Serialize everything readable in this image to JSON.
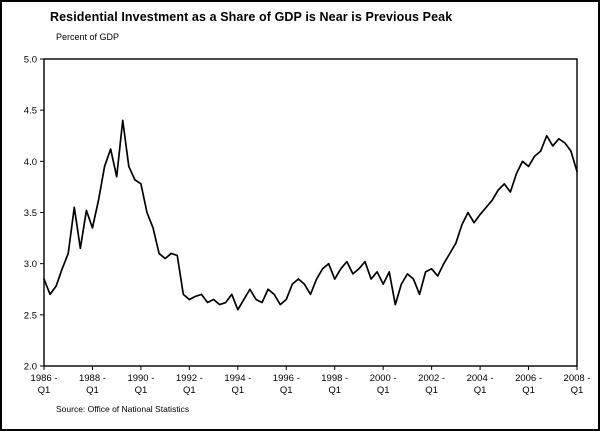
{
  "title": "Residential Investment as a Share of GDP is Near is Previous Peak",
  "subtitle": "Percent of GDP",
  "source": "Source: Office of National Statistics",
  "chart_data": {
    "type": "line",
    "title": "Residential Investment as a Share of GDP is Near is Previous Peak",
    "xlabel": "",
    "ylabel": "Percent of GDP",
    "ylim": [
      2.0,
      5.0
    ],
    "yticks": [
      "5.0",
      "4.5",
      "4.0",
      "3.5",
      "3.0",
      "2.5",
      "2.0"
    ],
    "ytick_values": [
      5.0,
      4.5,
      4.0,
      3.5,
      3.0,
      2.5,
      2.0
    ],
    "x_frequency": "quarterly",
    "x_start": "1986 Q1",
    "x_end": "2008 Q1",
    "xtick_indices": [
      0,
      8,
      16,
      24,
      32,
      40,
      48,
      56,
      64,
      72,
      80,
      88
    ],
    "xticks": [
      [
        "1986 -",
        "Q1"
      ],
      [
        "1988 -",
        "Q1"
      ],
      [
        "1990 -",
        "Q1"
      ],
      [
        "1992 -",
        "Q1"
      ],
      [
        "1994 -",
        "Q1"
      ],
      [
        "1996 -",
        "Q1"
      ],
      [
        "1998 -",
        "Q1"
      ],
      [
        "2000 -",
        "Q1"
      ],
      [
        "2002 -",
        "Q1"
      ],
      [
        "2004 -",
        "Q1"
      ],
      [
        "2006 -",
        "Q1"
      ],
      [
        "2008 -",
        "Q1"
      ]
    ],
    "legend": "off",
    "grid": "off",
    "line_color": "#000000",
    "series": [
      {
        "name": "Residential investment share of GDP (%)",
        "values": [
          2.85,
          2.7,
          2.78,
          2.95,
          3.1,
          3.55,
          3.15,
          3.52,
          3.35,
          3.62,
          3.95,
          4.12,
          3.85,
          4.4,
          3.95,
          3.82,
          3.78,
          3.5,
          3.35,
          3.1,
          3.05,
          3.1,
          3.08,
          2.7,
          2.65,
          2.68,
          2.7,
          2.62,
          2.65,
          2.6,
          2.62,
          2.7,
          2.55,
          2.65,
          2.75,
          2.65,
          2.62,
          2.75,
          2.7,
          2.6,
          2.65,
          2.8,
          2.85,
          2.8,
          2.7,
          2.85,
          2.95,
          3.0,
          2.85,
          2.95,
          3.02,
          2.9,
          2.95,
          3.02,
          2.85,
          2.92,
          2.8,
          2.92,
          2.6,
          2.8,
          2.9,
          2.85,
          2.7,
          2.92,
          2.95,
          2.88,
          3.0,
          3.1,
          3.2,
          3.38,
          3.5,
          3.4,
          3.48,
          3.55,
          3.62,
          3.72,
          3.78,
          3.7,
          3.88,
          4.0,
          3.95,
          4.05,
          4.1,
          4.25,
          4.15,
          4.22,
          4.18,
          4.1,
          3.9
        ]
      }
    ]
  }
}
